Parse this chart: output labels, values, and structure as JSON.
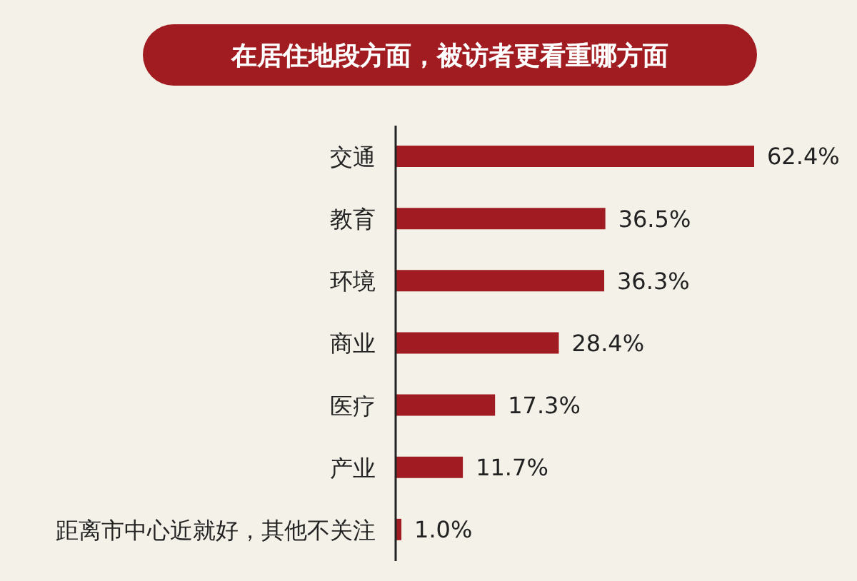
{
  "chart_data": {
    "type": "bar",
    "orientation": "horizontal",
    "title": "在居住地段方面，被访者更看重哪方面",
    "categories": [
      "交通",
      "教育",
      "环境",
      "商业",
      "医疗",
      "产业",
      "距离市中心近就好，其他不关注"
    ],
    "values": [
      62.4,
      36.5,
      36.3,
      28.4,
      17.3,
      11.7,
      1.0
    ],
    "value_labels": [
      "62.4%",
      "36.5%",
      "36.3%",
      "28.4%",
      "17.3%",
      "11.7%",
      "1.0%"
    ],
    "color": "#a11c22",
    "tick_labels": "y"
  }
}
